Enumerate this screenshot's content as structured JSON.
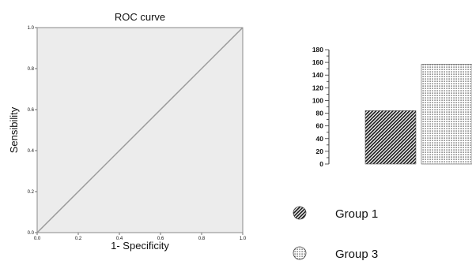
{
  "chart_data": [
    {
      "type": "line",
      "title": "ROC curve",
      "xlabel": "1- Specificity",
      "ylabel": "Sensibility",
      "xlim": [
        0.0,
        1.0
      ],
      "ylim": [
        0.0,
        1.0
      ],
      "xticks": [
        0.0,
        0.2,
        0.4,
        0.6,
        0.8,
        1.0
      ],
      "xtick_labels": [
        "0.0",
        "0.2",
        "0.4",
        "0.6",
        "0.8",
        "1.0"
      ],
      "yticks": [
        0.0,
        0.2,
        0.4,
        0.6,
        0.8,
        1.0
      ],
      "ytick_labels": [
        "0.0",
        "0.2",
        "0.4",
        "0.6",
        "0.8",
        "1.0"
      ],
      "grid": false,
      "plot_background": "#ececec",
      "line_color": "#9a9a9a",
      "series": [
        {
          "x": [
            0.0,
            1.0
          ],
          "y": [
            0.0,
            1.0
          ]
        }
      ]
    },
    {
      "type": "bar",
      "categories": [
        "Group 1",
        "Group 3"
      ],
      "values": [
        84,
        157
      ],
      "ylim": [
        0,
        180
      ],
      "yticks": [
        0,
        10,
        20,
        30,
        40,
        50,
        60,
        70,
        80,
        90,
        100,
        110,
        120,
        130,
        140,
        150,
        160,
        170,
        180
      ],
      "ytick_labels": [
        "0",
        "20",
        "40",
        "60",
        "80",
        "100",
        "120",
        "140",
        "160",
        "180"
      ],
      "patterns": [
        "diagonal-hatch",
        "dots"
      ],
      "legend": {
        "position": "bottom",
        "items": [
          {
            "label": "Group 1",
            "pattern": "diagonal-hatch",
            "icon": "hatched-circle-icon"
          },
          {
            "label": "Group 3",
            "pattern": "dots",
            "icon": "dotted-circle-icon"
          }
        ]
      },
      "grid": false
    }
  ]
}
